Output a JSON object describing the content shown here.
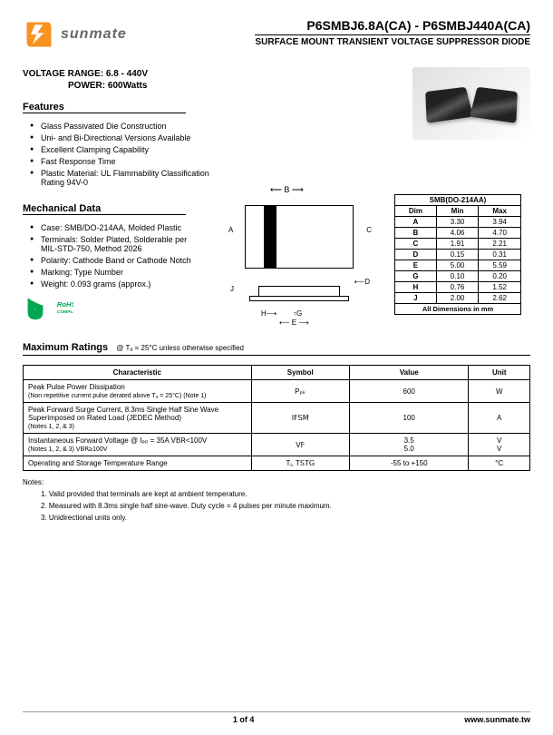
{
  "header": {
    "brand": "sunmate",
    "part_number": "P6SMBJ6.8A(CA) - P6SMBJ440A(CA)",
    "subtitle": "SURFACE MOUNT TRANSIENT VOLTAGE SUPPRESSOR DIODE"
  },
  "voltage_label": "VOLTAGE  RANGE:",
  "voltage_value": "6.8 - 440V",
  "power_label": "POWER:",
  "power_value": "600Watts",
  "features_title": "Features",
  "features": [
    "Glass Passivated Die Construction",
    "Uni- and Bi-Directional Versions Available",
    "Excellent Clamping Capability",
    "Fast Response Time",
    "Plastic Material: UL Flammability Classification Rating 94V-0"
  ],
  "mechanical_title": "Mechanical Data",
  "mechanical": [
    "Case: SMB/DO-214AA, Molded Plastic",
    "Terminals: Solder Plated, Solderable per MIL-STD-750, Method 2026",
    "Polarity: Cathode Band or Cathode Notch",
    "Marking: Type Number",
    "Weight: 0.093 grams (approx.)"
  ],
  "rohs_text": "RoHS COMPLIANT",
  "dim_table": {
    "title": "SMB(DO-214AA)",
    "headers": [
      "Dim",
      "Min",
      "Max"
    ],
    "rows": [
      [
        "A",
        "3.30",
        "3.94"
      ],
      [
        "B",
        "4.06",
        "4.70"
      ],
      [
        "C",
        "1.91",
        "2.21"
      ],
      [
        "D",
        "0.15",
        "0.31"
      ],
      [
        "E",
        "5.00",
        "5.59"
      ],
      [
        "G",
        "0.10",
        "0.20"
      ],
      [
        "H",
        "0.76",
        "1.52"
      ],
      [
        "J",
        "2.00",
        "2.62"
      ]
    ],
    "footer": "All Dimensions in mm"
  },
  "diagram_labels": {
    "A": "A",
    "B": "B",
    "C": "C",
    "D": "D",
    "E": "E",
    "G": "G",
    "H": "H",
    "J": "J"
  },
  "max_ratings_title": "Maximum Ratings",
  "max_ratings_sub": "@ Tₐ = 25°C unless otherwise specified",
  "ratings_table": {
    "headers": [
      "Characteristic",
      "Symbol",
      "Value",
      "Unit"
    ],
    "rows": [
      {
        "char": "Peak Pulse Power Dissipation",
        "char_sub": "(Non repetitive current pulse derated above Tₐ = 25°C) (Note 1)",
        "symbol": "Pₚₖ",
        "value": "600",
        "unit": "W"
      },
      {
        "char": "Peak Forward Surge Current, 8.3ms Single Half Sine Wave Superimposed on Rated Load (JEDEC Method)",
        "char_sub": "(Notes 1, 2, & 3)",
        "symbol": "I𝖥𝖲𝖬",
        "value": "100",
        "unit": "A"
      },
      {
        "char": "Instantaneous Forward Voltage @ Iₚₚ = 35A    V𝖡𝖱<100V",
        "char_sub": "(Notes 1, 2, & 3)                              V𝖡𝖱≥100V",
        "symbol": "V𝖥",
        "value": "3.5\n5.0",
        "unit": "V\nV"
      },
      {
        "char": "Operating and Storage Temperature Range",
        "char_sub": "",
        "symbol": "Tⱼ, T𝖲𝖳𝖦",
        "value": "-55 to +150",
        "unit": "°C"
      }
    ]
  },
  "notes_title": "Notes:",
  "notes": [
    "1. Valid provided that terminals are kept at ambient temperature.",
    "2. Measured with 8.3ms single half sine-wave.  Duty cycle = 4 pulses per minute maximum.",
    "3. Unidirectional units only."
  ],
  "footer": {
    "page": "1 of 4",
    "url": "www.sunmate.tw"
  },
  "colors": {
    "logo_orange": "#f7931e",
    "rohs_green": "#00a651",
    "text": "#000000"
  }
}
